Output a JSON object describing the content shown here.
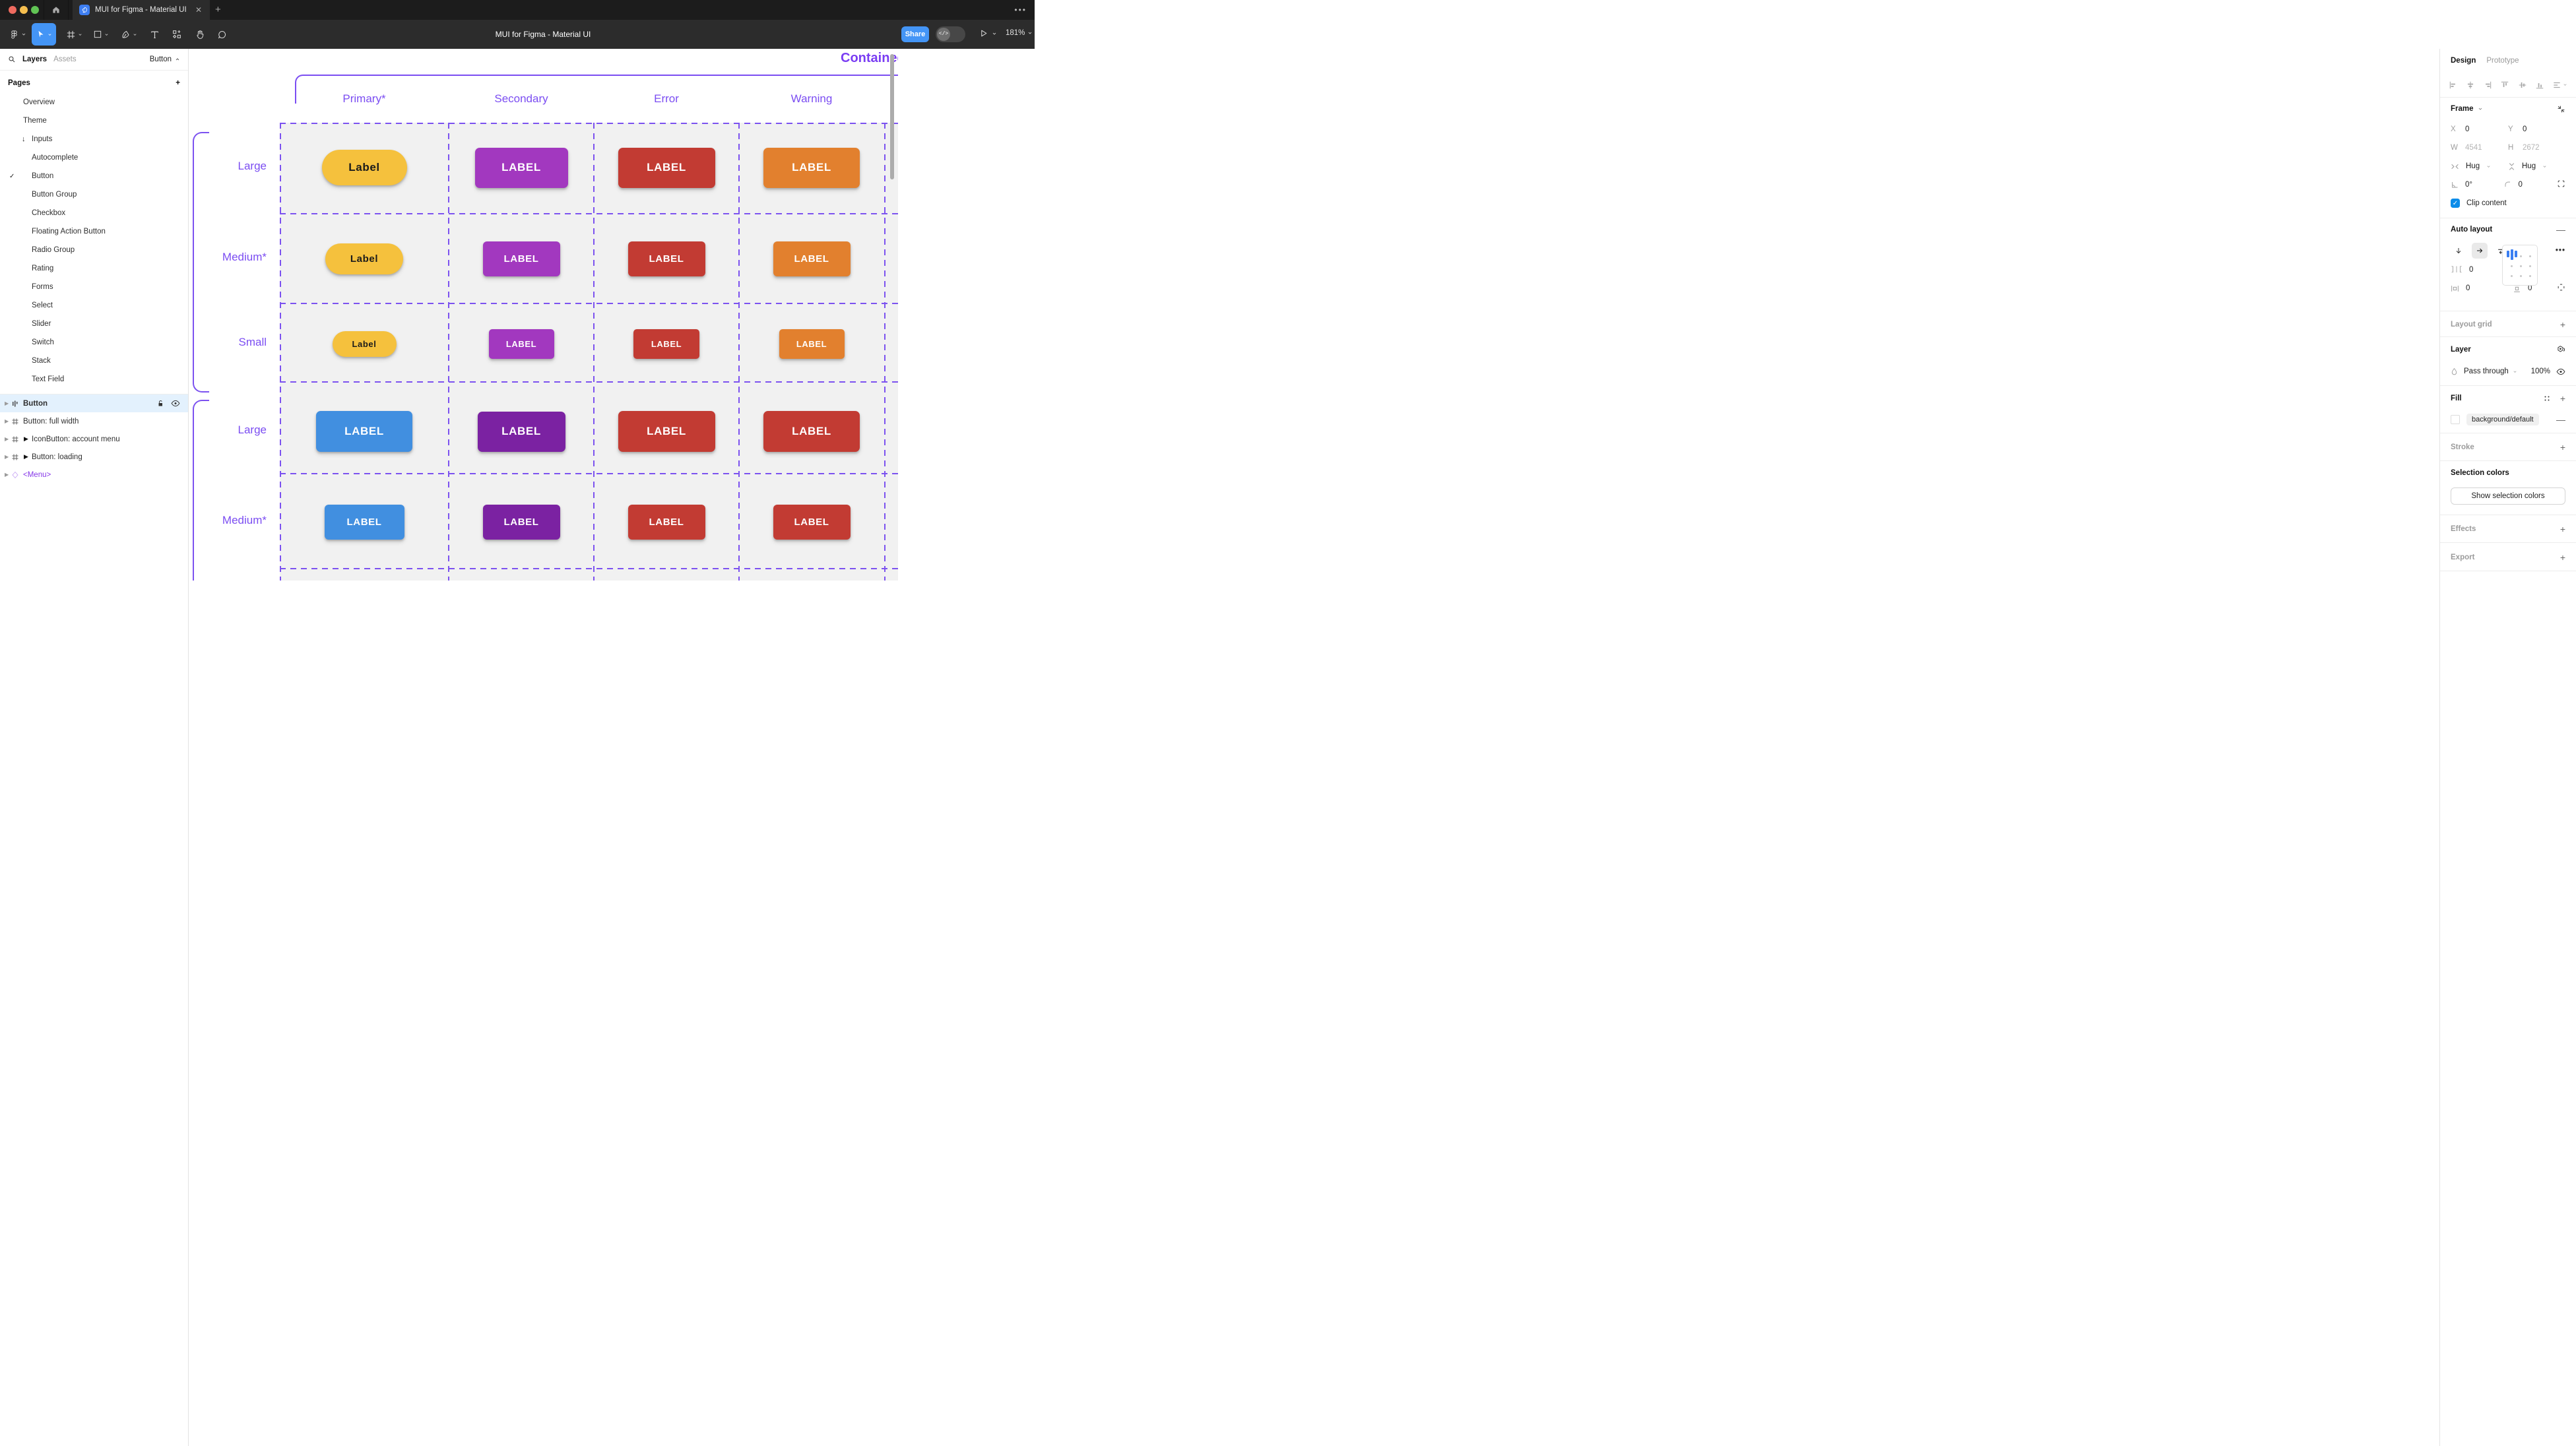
{
  "window": {
    "tab_title": "MUI for Figma - Material UI",
    "doc_title": "MUI for Figma - Material UI",
    "close_glyph": "✕",
    "more_glyph": "•••",
    "share_label": "Share",
    "zoom_level": "181%"
  },
  "toolbar": {
    "tools": [
      "figma-menu",
      "move-tool",
      "frame-tool",
      "shape-tool",
      "pen-tool",
      "text-tool",
      "resources-tool",
      "hand-tool",
      "comment-tool"
    ],
    "selected_tool": "move-tool",
    "accent": "#4495F6"
  },
  "left_panel": {
    "tabs": [
      {
        "label": "Layers",
        "active": true
      },
      {
        "label": "Assets",
        "active": false
      }
    ],
    "page_selector": "Button",
    "pages_header": "Pages",
    "pages": [
      {
        "label": "Overview",
        "indent": 1
      },
      {
        "label": "Theme",
        "indent": 1
      },
      {
        "label": "Inputs",
        "indent": 1,
        "prefix": "arrow-down"
      },
      {
        "label": "Autocomplete",
        "indent": 2
      },
      {
        "label": "Button",
        "indent": 2,
        "checked": true
      },
      {
        "label": "Button Group",
        "indent": 2
      },
      {
        "label": "Checkbox",
        "indent": 2
      },
      {
        "label": "Floating Action Button",
        "indent": 2
      },
      {
        "label": "Radio Group",
        "indent": 2
      },
      {
        "label": "Rating",
        "indent": 2
      },
      {
        "label": "Forms",
        "indent": 2
      },
      {
        "label": "Select",
        "indent": 2
      },
      {
        "label": "Slider",
        "indent": 2
      },
      {
        "label": "Switch",
        "indent": 2
      },
      {
        "label": "Stack",
        "indent": 2
      },
      {
        "label": "Text Field",
        "indent": 2
      }
    ],
    "layers": [
      {
        "label": "Button",
        "icon": "auto-layout",
        "selected": true,
        "lock": true,
        "eye": true
      },
      {
        "label": "Button: full width",
        "icon": "frame"
      },
      {
        "label": "IconButton: account menu",
        "icon": "frame",
        "expand": true
      },
      {
        "label": "Button: loading",
        "icon": "frame",
        "expand": true
      },
      {
        "label": "<Menu>",
        "icon": "diamond",
        "purple": true
      }
    ]
  },
  "canvas": {
    "frame_title": "Contained",
    "accent": "#7B4DF2",
    "columns": [
      "Primary*",
      "Secondary",
      "Error",
      "Warning"
    ],
    "sections": [
      {
        "rows": [
          {
            "label": "Large",
            "buttons": [
              {
                "text": "Label",
                "bg": "#F5C13D",
                "fg": "#1B1B1B",
                "w": 129,
                "h": 54,
                "r": 27,
                "fs": 17
              },
              {
                "text": "LABEL",
                "bg": "#A238BF",
                "fg": "#FFFFFF",
                "w": 141,
                "h": 61,
                "r": 7,
                "fs": 17
              },
              {
                "text": "LABEL",
                "bg": "#C23B33",
                "fg": "#FFFFFF",
                "w": 147,
                "h": 61,
                "r": 7,
                "fs": 17
              },
              {
                "text": "LABEL",
                "bg": "#E2802E",
                "fg": "#FFFFFF",
                "w": 146,
                "h": 61,
                "r": 7,
                "fs": 17
              }
            ]
          },
          {
            "label": "Medium*",
            "buttons": [
              {
                "text": "Label",
                "bg": "#F5C13D",
                "fg": "#1B1B1B",
                "w": 118,
                "h": 47,
                "r": 24,
                "fs": 15
              },
              {
                "text": "LABEL",
                "bg": "#A238BF",
                "fg": "#FFFFFF",
                "w": 117,
                "h": 53,
                "r": 6,
                "fs": 15
              },
              {
                "text": "LABEL",
                "bg": "#C23B33",
                "fg": "#FFFFFF",
                "w": 117,
                "h": 53,
                "r": 6,
                "fs": 15
              },
              {
                "text": "LABEL",
                "bg": "#E2802E",
                "fg": "#FFFFFF",
                "w": 117,
                "h": 53,
                "r": 6,
                "fs": 15
              }
            ]
          },
          {
            "label": "Small",
            "buttons": [
              {
                "text": "Label",
                "bg": "#F5C13D",
                "fg": "#1B1B1B",
                "w": 97,
                "h": 39,
                "r": 20,
                "fs": 13
              },
              {
                "text": "LABEL",
                "bg": "#A238BF",
                "fg": "#FFFFFF",
                "w": 99,
                "h": 45,
                "r": 5,
                "fs": 13
              },
              {
                "text": "LABEL",
                "bg": "#C23B33",
                "fg": "#FFFFFF",
                "w": 100,
                "h": 45,
                "r": 5,
                "fs": 13
              },
              {
                "text": "LABEL",
                "bg": "#E2802E",
                "fg": "#FFFFFF",
                "w": 99,
                "h": 45,
                "r": 5,
                "fs": 13
              }
            ]
          }
        ]
      },
      {
        "rows": [
          {
            "label": "Large",
            "buttons": [
              {
                "text": "LABEL",
                "bg": "#418FE0",
                "fg": "#FFFFFF",
                "w": 146,
                "h": 62,
                "r": 7,
                "fs": 17
              },
              {
                "text": "LABEL",
                "bg": "#7B22A2",
                "fg": "#FFFFFF",
                "w": 133,
                "h": 61,
                "r": 7,
                "fs": 17
              },
              {
                "text": "LABEL",
                "bg": "#C23B33",
                "fg": "#FFFFFF",
                "w": 147,
                "h": 62,
                "r": 7,
                "fs": 17
              },
              {
                "text": "LABEL",
                "bg": "#C23B33",
                "fg": "#FFFFFF",
                "w": 146,
                "h": 62,
                "r": 7,
                "fs": 17
              }
            ]
          },
          {
            "label": "Medium*",
            "buttons": [
              {
                "text": "LABEL",
                "bg": "#418FE0",
                "fg": "#FFFFFF",
                "w": 121,
                "h": 53,
                "r": 6,
                "fs": 15
              },
              {
                "text": "LABEL",
                "bg": "#7B22A2",
                "fg": "#FFFFFF",
                "w": 117,
                "h": 53,
                "r": 6,
                "fs": 15
              },
              {
                "text": "LABEL",
                "bg": "#C23B33",
                "fg": "#FFFFFF",
                "w": 117,
                "h": 53,
                "r": 6,
                "fs": 15
              },
              {
                "text": "LABEL",
                "bg": "#C23B33",
                "fg": "#FFFFFF",
                "w": 117,
                "h": 53,
                "r": 6,
                "fs": 15
              }
            ]
          }
        ]
      }
    ]
  },
  "right_panel": {
    "tabs": [
      {
        "label": "Design",
        "active": true
      },
      {
        "label": "Prototype",
        "active": false
      }
    ],
    "frame": {
      "title": "Frame",
      "x_label": "X",
      "x_value": "0",
      "y_label": "Y",
      "y_value": "0",
      "w_label": "W",
      "w_value": "4541",
      "h_label": "H",
      "h_value": "2672",
      "h_resize": "Hug",
      "v_resize": "Hug",
      "rotation": "0°",
      "corner_radius": "0",
      "clip_label": "Clip content",
      "clip_checked": true
    },
    "auto_layout": {
      "title": "Auto layout",
      "gap": "0",
      "padding_h": "0",
      "padding_v": "0"
    },
    "layout_grid": {
      "title": "Layout grid"
    },
    "layer": {
      "title": "Layer",
      "blend_mode": "Pass through",
      "opacity": "100%"
    },
    "fill": {
      "title": "Fill",
      "token": "background/default"
    },
    "stroke": {
      "title": "Stroke"
    },
    "selection_colors": {
      "title": "Selection colors",
      "button_label": "Show selection colors"
    },
    "effects": {
      "title": "Effects"
    },
    "export": {
      "title": "Export"
    }
  }
}
